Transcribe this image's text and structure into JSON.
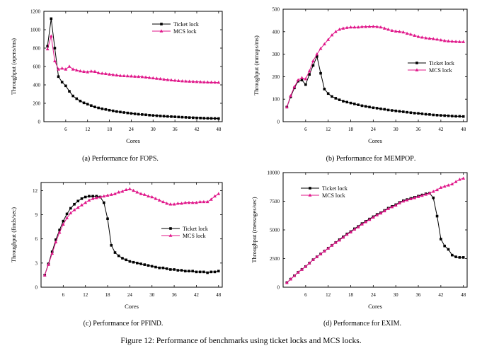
{
  "figure_caption": "Figure 12: Performance of benchmarks using ticket locks and MCS locks.",
  "panels": [
    {
      "caption_prefix": "(a) Performance for ",
      "caption_benchmark": "FOPS",
      "caption_suffix": "."
    },
    {
      "caption_prefix": "(b) Performance for ",
      "caption_benchmark": "MEMPOP",
      "caption_suffix": "."
    },
    {
      "caption_prefix": "(c) Performance for ",
      "caption_benchmark": "PFIND",
      "caption_suffix": "."
    },
    {
      "caption_prefix": "(d) Performance for ",
      "caption_benchmark": "EXIM",
      "caption_suffix": "."
    }
  ],
  "chart_data": [
    {
      "type": "line",
      "xlabel": "Cores",
      "ylabel": "Throughput (opens/ms)",
      "xlim": [
        0,
        49
      ],
      "ylim": [
        0,
        1200
      ],
      "xticks": [
        6,
        12,
        18,
        24,
        30,
        36,
        42,
        48
      ],
      "yticks": [
        0,
        200,
        400,
        600,
        800,
        1000,
        1200
      ],
      "legend": "top-right",
      "grid": false,
      "x": [
        1,
        2,
        3,
        4,
        5,
        6,
        7,
        8,
        9,
        10,
        11,
        12,
        13,
        14,
        15,
        16,
        17,
        18,
        19,
        20,
        21,
        22,
        23,
        24,
        25,
        26,
        27,
        28,
        29,
        30,
        31,
        32,
        33,
        34,
        35,
        36,
        37,
        38,
        39,
        40,
        41,
        42,
        43,
        44,
        45,
        46,
        47,
        48
      ],
      "series": [
        {
          "name": "Ticket lock",
          "color": "#000000",
          "marker": "square",
          "values": [
            820,
            1120,
            800,
            490,
            430,
            390,
            330,
            280,
            250,
            225,
            205,
            190,
            175,
            160,
            150,
            140,
            133,
            125,
            118,
            110,
            105,
            100,
            95,
            90,
            85,
            81,
            78,
            75,
            71,
            68,
            65,
            62,
            60,
            57,
            55,
            53,
            51,
            49,
            47,
            45,
            43,
            41,
            40,
            38,
            37,
            36,
            35,
            34
          ]
        },
        {
          "name": "MCS lock",
          "color": "#e0178a",
          "marker": "triangle",
          "values": [
            790,
            930,
            660,
            570,
            580,
            570,
            600,
            570,
            560,
            550,
            545,
            540,
            548,
            545,
            530,
            525,
            522,
            515,
            510,
            505,
            500,
            498,
            497,
            495,
            492,
            490,
            488,
            483,
            478,
            474,
            470,
            466,
            460,
            455,
            452,
            448,
            445,
            442,
            440,
            438,
            436,
            434,
            432,
            430,
            429,
            428,
            427,
            426
          ]
        }
      ]
    },
    {
      "type": "line",
      "xlabel": "Cores",
      "ylabel": "Throughput (mmaps/ms)",
      "xlim": [
        0,
        49
      ],
      "ylim": [
        0,
        500
      ],
      "xticks": [
        6,
        12,
        18,
        24,
        30,
        36,
        42,
        48
      ],
      "yticks": [
        0,
        100,
        200,
        300,
        400,
        500
      ],
      "legend": "right",
      "grid": false,
      "x": [
        1,
        2,
        3,
        4,
        5,
        6,
        7,
        8,
        9,
        10,
        11,
        12,
        13,
        14,
        15,
        16,
        17,
        18,
        19,
        20,
        21,
        22,
        23,
        24,
        25,
        26,
        27,
        28,
        29,
        30,
        31,
        32,
        33,
        34,
        35,
        36,
        37,
        38,
        39,
        40,
        41,
        42,
        43,
        44,
        45,
        46,
        47,
        48
      ],
      "series": [
        {
          "name": "Ticket lock",
          "color": "#000000",
          "marker": "square",
          "values": [
            65,
            110,
            150,
            180,
            185,
            165,
            210,
            250,
            290,
            215,
            145,
            125,
            112,
            104,
            97,
            91,
            87,
            83,
            79,
            75,
            71,
            68,
            65,
            62,
            60,
            57,
            55,
            52,
            50,
            48,
            46,
            44,
            42,
            40,
            38,
            37,
            35,
            33,
            32,
            30,
            29,
            28,
            27,
            26,
            25,
            24,
            24,
            23
          ]
        },
        {
          "name": "MCS lock",
          "color": "#e0178a",
          "marker": "triangle",
          "values": [
            65,
            115,
            155,
            185,
            195,
            190,
            225,
            270,
            300,
            325,
            345,
            365,
            385,
            400,
            410,
            415,
            418,
            420,
            420,
            420,
            422,
            422,
            423,
            423,
            422,
            420,
            415,
            410,
            405,
            402,
            400,
            398,
            392,
            388,
            383,
            378,
            375,
            372,
            370,
            368,
            366,
            363,
            360,
            358,
            357,
            356,
            355,
            355
          ]
        }
      ]
    },
    {
      "type": "line",
      "xlabel": "Cores",
      "ylabel": "Throughput (finds/sec)",
      "xlim": [
        0,
        49
      ],
      "ylim": [
        0,
        13
      ],
      "xticks": [
        6,
        12,
        18,
        24,
        30,
        36,
        42,
        48
      ],
      "yticks": [
        0,
        3,
        6,
        9,
        12
      ],
      "legend": "right",
      "grid": false,
      "x": [
        1,
        2,
        3,
        4,
        5,
        6,
        7,
        8,
        9,
        10,
        11,
        12,
        13,
        14,
        15,
        16,
        17,
        18,
        19,
        20,
        21,
        22,
        23,
        24,
        25,
        26,
        27,
        28,
        29,
        30,
        31,
        32,
        33,
        34,
        35,
        36,
        37,
        38,
        39,
        40,
        41,
        42,
        43,
        44,
        45,
        46,
        47,
        48
      ],
      "series": [
        {
          "name": "Ticket lock",
          "color": "#000000",
          "marker": "square",
          "values": [
            1.5,
            2.9,
            4.4,
            5.9,
            7.1,
            8.2,
            9.1,
            9.8,
            10.3,
            10.7,
            11.0,
            11.2,
            11.3,
            11.3,
            11.3,
            11.2,
            10.5,
            8.5,
            5.2,
            4.3,
            3.9,
            3.6,
            3.4,
            3.2,
            3.1,
            3.0,
            2.9,
            2.8,
            2.7,
            2.6,
            2.5,
            2.4,
            2.4,
            2.3,
            2.2,
            2.2,
            2.1,
            2.1,
            2.0,
            2.0,
            2.0,
            1.9,
            1.9,
            1.9,
            1.8,
            1.9,
            1.9,
            2.0
          ]
        },
        {
          "name": "MCS lock",
          "color": "#e0178a",
          "marker": "triangle",
          "values": [
            1.5,
            2.8,
            4.2,
            5.6,
            6.8,
            7.8,
            8.6,
            9.2,
            9.6,
            9.9,
            10.2,
            10.5,
            10.8,
            11.0,
            11.1,
            11.2,
            11.3,
            11.4,
            11.5,
            11.6,
            11.8,
            11.9,
            12.1,
            12.2,
            12.0,
            11.8,
            11.6,
            11.5,
            11.3,
            11.2,
            11.0,
            10.8,
            10.6,
            10.4,
            10.3,
            10.3,
            10.4,
            10.4,
            10.5,
            10.5,
            10.5,
            10.5,
            10.6,
            10.6,
            10.6,
            10.9,
            11.3,
            11.6
          ]
        }
      ]
    },
    {
      "type": "line",
      "xlabel": "Cores",
      "ylabel": "Throughput (messages/sec)",
      "xlim": [
        0,
        49
      ],
      "ylim": [
        0,
        10000
      ],
      "xticks": [
        6,
        12,
        18,
        24,
        30,
        36,
        42,
        48
      ],
      "yticks": [
        0,
        2500,
        5000,
        7500,
        10000
      ],
      "legend": "top-left",
      "grid": false,
      "x": [
        1,
        2,
        3,
        4,
        5,
        6,
        7,
        8,
        9,
        10,
        11,
        12,
        13,
        14,
        15,
        16,
        17,
        18,
        19,
        20,
        21,
        22,
        23,
        24,
        25,
        26,
        27,
        28,
        29,
        30,
        31,
        32,
        33,
        34,
        35,
        36,
        37,
        38,
        39,
        40,
        41,
        42,
        43,
        44,
        45,
        46,
        47,
        48
      ],
      "series": [
        {
          "name": "Ticket lock",
          "color": "#000000",
          "marker": "square",
          "values": [
            400,
            700,
            1000,
            1300,
            1550,
            1800,
            2100,
            2400,
            2650,
            2900,
            3150,
            3400,
            3650,
            3900,
            4150,
            4400,
            4650,
            4850,
            5100,
            5300,
            5550,
            5750,
            5950,
            6150,
            6350,
            6500,
            6700,
            6900,
            7050,
            7200,
            7400,
            7550,
            7650,
            7750,
            7850,
            7950,
            8050,
            8150,
            8200,
            7800,
            6200,
            4200,
            3600,
            3300,
            2800,
            2650,
            2600,
            2600
          ]
        },
        {
          "name": "MCS lock",
          "color": "#e0178a",
          "marker": "triangle",
          "values": [
            400,
            700,
            1000,
            1300,
            1550,
            1800,
            2100,
            2400,
            2650,
            2900,
            3150,
            3400,
            3650,
            3900,
            4100,
            4350,
            4600,
            4800,
            5050,
            5250,
            5500,
            5700,
            5900,
            6100,
            6300,
            6450,
            6650,
            6850,
            7000,
            7150,
            7350,
            7500,
            7600,
            7700,
            7800,
            7900,
            8000,
            8100,
            8200,
            8350,
            8500,
            8700,
            8800,
            8900,
            9000,
            9200,
            9400,
            9500
          ]
        }
      ]
    }
  ]
}
